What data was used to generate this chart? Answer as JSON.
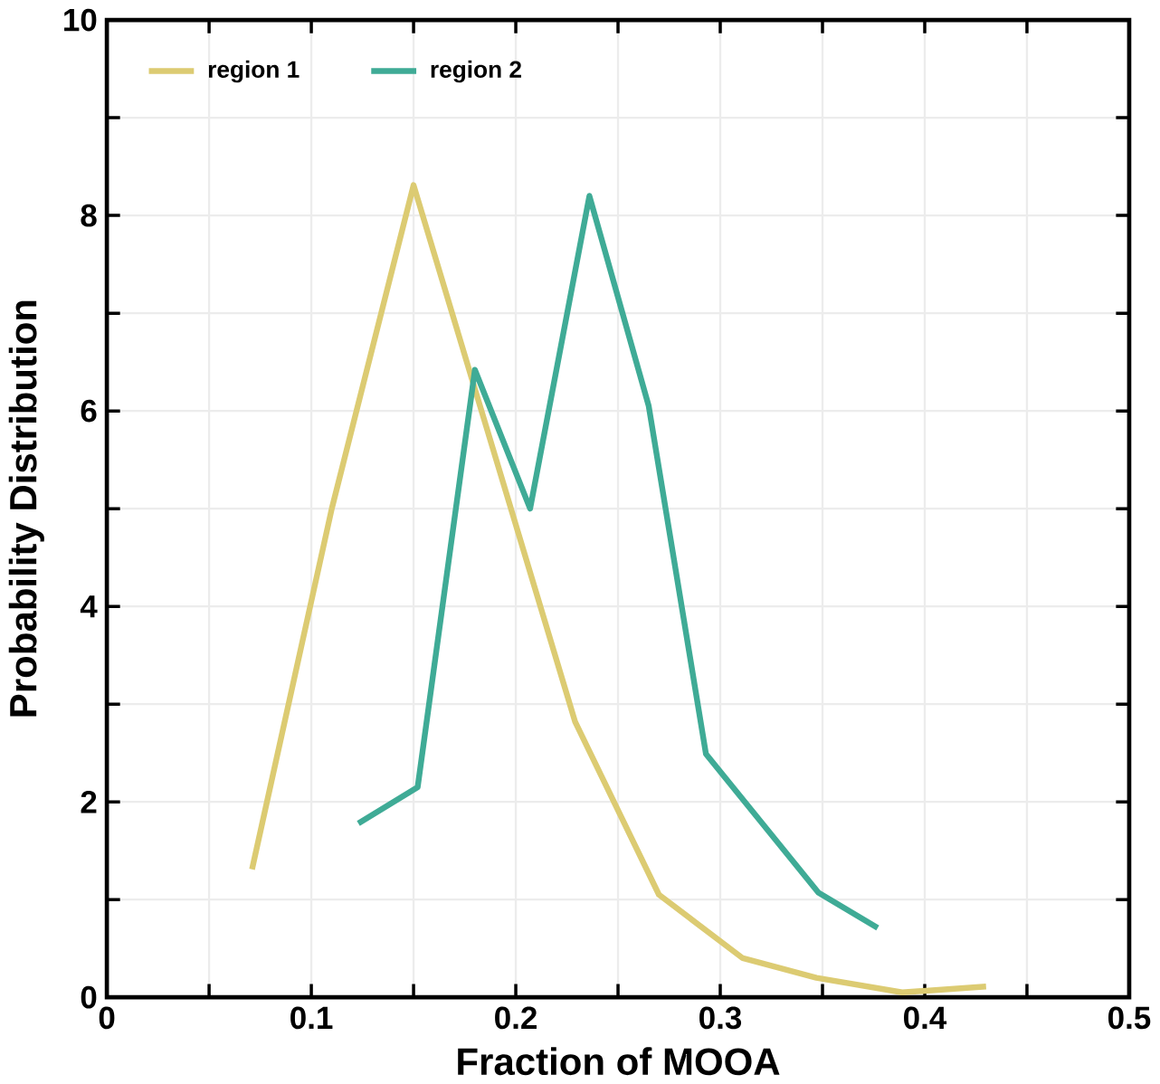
{
  "chart_data": {
    "type": "line",
    "xlabel": "Fraction of MOOA",
    "ylabel": "Probability Distribution",
    "xlim": [
      0,
      0.5
    ],
    "ylim": [
      0,
      10
    ],
    "xticks": [
      0,
      {
        "value": 0.05,
        "label": null
      },
      0.1,
      {
        "value": 0.15,
        "label": null
      },
      0.2,
      {
        "value": 0.25,
        "label": null
      },
      0.3,
      {
        "value": 0.35,
        "label": null
      },
      0.4,
      {
        "value": 0.45,
        "label": null
      },
      0.5
    ],
    "yticks": [
      0,
      {
        "value": 1,
        "label": null
      },
      2,
      {
        "value": 3,
        "label": null
      },
      4,
      {
        "value": 5,
        "label": null
      },
      6,
      {
        "value": 7,
        "label": null
      },
      8,
      {
        "value": 9,
        "label": null
      },
      10
    ],
    "grid": true,
    "legend": "top left",
    "marker": "none",
    "line_style": "solid",
    "series": [
      {
        "name": "region 1",
        "color": "#dccb72",
        "x": [
          0.071,
          0.11,
          0.15,
          0.229,
          0.27,
          0.311,
          0.347,
          0.389,
          0.43
        ],
        "values": [
          1.31,
          5.0,
          8.31,
          2.82,
          1.05,
          0.4,
          0.2,
          0.05,
          0.11
        ]
      },
      {
        "name": "region 2",
        "color": "#3fab96",
        "x": [
          0.123,
          0.152,
          0.18,
          0.207,
          0.236,
          0.265,
          0.293,
          0.348,
          0.377
        ],
        "values": [
          1.78,
          2.15,
          6.42,
          5.0,
          8.2,
          6.05,
          2.49,
          1.07,
          0.71
        ]
      }
    ]
  }
}
